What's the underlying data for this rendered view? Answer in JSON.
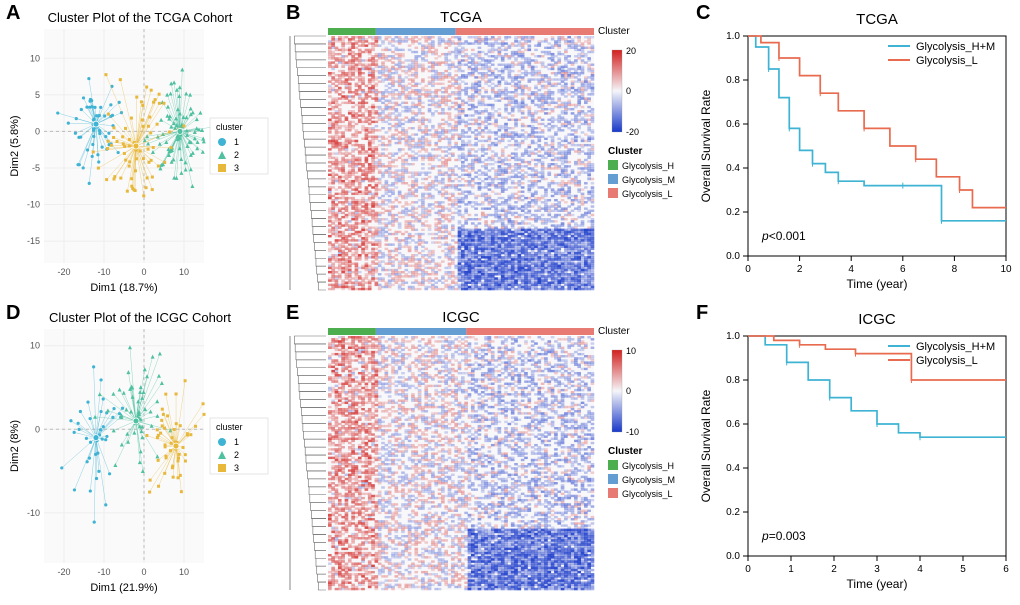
{
  "panels": {
    "A": {
      "label": "A",
      "title": "Cluster Plot of the TCGA Cohort",
      "xlabel": "Dim1 (18.7%)",
      "ylabel": "Dim2 (5.8%)",
      "xlim": [
        -25,
        15
      ],
      "ylim": [
        -18,
        14
      ],
      "xticks": [
        -20,
        -10,
        0,
        10
      ],
      "yticks": [
        -15,
        -10,
        -5,
        0,
        5,
        10
      ],
      "legend_title": "cluster",
      "clusters": [
        {
          "id": "1",
          "color": "#3eb3d4",
          "marker": "circle",
          "centroid": [
            -12,
            1
          ],
          "n": 55,
          "spread": 7
        },
        {
          "id": "2",
          "color": "#4fc0a0",
          "marker": "triangle",
          "centroid": [
            9,
            0
          ],
          "n": 85,
          "spread": 7
        },
        {
          "id": "3",
          "color": "#e8b83c",
          "marker": "square",
          "centroid": [
            -2,
            -2
          ],
          "n": 70,
          "spread": 9
        }
      ]
    },
    "B": {
      "label": "B",
      "title": "TCGA",
      "cluster_bar_label": "Cluster",
      "cluster_colors": {
        "H": "#4cae4f",
        "M": "#649dd1",
        "L": "#e77a72"
      },
      "cluster_widths": {
        "H": 0.18,
        "M": 0.3,
        "L": 0.52
      },
      "colorbar": {
        "min": -20,
        "mid": 0,
        "max": 20,
        "low_color": "#1838c9",
        "mid_color": "#f5f5f9",
        "high_color": "#d2201e"
      },
      "legend_title": "Cluster",
      "legend_items": [
        {
          "label": "Glycolysis_H",
          "color": "#4cae4f"
        },
        {
          "label": "Glycolysis_M",
          "color": "#649dd1"
        },
        {
          "label": "Glycolysis_L",
          "color": "#e77a72"
        }
      ],
      "dendro_color": "#6a6a6a"
    },
    "C": {
      "label": "C",
      "title": "TCGA",
      "xlabel": "Time (year)",
      "ylabel": "Overall Survival Rate",
      "xlim": [
        0,
        10
      ],
      "ylim": [
        0,
        1.0
      ],
      "xticks": [
        0,
        2,
        4,
        6,
        8,
        10
      ],
      "yticks": [
        0.0,
        0.2,
        0.4,
        0.6,
        0.8,
        1.0
      ],
      "pvalue_text_prefix": "p",
      "pvalue_text": "<0.001",
      "legend": [
        {
          "label": "Glycolysis_H+M",
          "color": "#3eb3d4"
        },
        {
          "label": "Glycolysis_L",
          "color": "#e86b4f"
        }
      ],
      "curves": {
        "HM": {
          "color": "#3eb3d4",
          "pts": [
            [
              0,
              1.0
            ],
            [
              0.3,
              0.95
            ],
            [
              0.8,
              0.85
            ],
            [
              1.2,
              0.72
            ],
            [
              1.6,
              0.58
            ],
            [
              2.0,
              0.48
            ],
            [
              2.5,
              0.42
            ],
            [
              3.0,
              0.38
            ],
            [
              3.5,
              0.34
            ],
            [
              4.5,
              0.32
            ],
            [
              6.0,
              0.32
            ],
            [
              7.0,
              0.32
            ],
            [
              7.5,
              0.16
            ],
            [
              10,
              0.16
            ]
          ]
        },
        "L": {
          "color": "#e86b4f",
          "pts": [
            [
              0,
              1.0
            ],
            [
              0.5,
              0.97
            ],
            [
              1.2,
              0.9
            ],
            [
              2.0,
              0.82
            ],
            [
              2.8,
              0.74
            ],
            [
              3.5,
              0.66
            ],
            [
              4.5,
              0.58
            ],
            [
              5.5,
              0.5
            ],
            [
              6.5,
              0.44
            ],
            [
              7.3,
              0.36
            ],
            [
              8.2,
              0.3
            ],
            [
              8.7,
              0.22
            ],
            [
              10,
              0.22
            ]
          ]
        }
      }
    },
    "D": {
      "label": "D",
      "title": "Cluster Plot of the ICGC Cohort",
      "xlabel": "Dim1 (21.9%)",
      "ylabel": "Dim2 (8%)",
      "xlim": [
        -25,
        15
      ],
      "ylim": [
        -16,
        12
      ],
      "xticks": [
        -20,
        -10,
        0,
        10
      ],
      "yticks": [
        -10,
        0,
        10
      ],
      "legend_title": "cluster",
      "clusters": [
        {
          "id": "1",
          "color": "#3eb3d4",
          "marker": "circle",
          "centroid": [
            -12,
            -1
          ],
          "n": 40,
          "spread": 7
        },
        {
          "id": "2",
          "color": "#4fc0a0",
          "marker": "triangle",
          "centroid": [
            -2,
            1
          ],
          "n": 55,
          "spread": 8
        },
        {
          "id": "3",
          "color": "#e8b83c",
          "marker": "square",
          "centroid": [
            8,
            -2
          ],
          "n": 50,
          "spread": 7
        }
      ]
    },
    "E": {
      "label": "E",
      "title": "ICGC",
      "cluster_bar_label": "Cluster",
      "cluster_colors": {
        "H": "#4cae4f",
        "M": "#649dd1",
        "L": "#e77a72"
      },
      "cluster_widths": {
        "H": 0.18,
        "M": 0.34,
        "L": 0.48
      },
      "colorbar": {
        "min": -10,
        "mid": 0,
        "max": 10,
        "low_color": "#1838c9",
        "mid_color": "#f5f5f9",
        "high_color": "#d2201e"
      },
      "legend_title": "Cluster",
      "legend_items": [
        {
          "label": "Glycolysis_H",
          "color": "#4cae4f"
        },
        {
          "label": "Glycolysis_M",
          "color": "#649dd1"
        },
        {
          "label": "Glycolysis_L",
          "color": "#e77a72"
        }
      ],
      "dendro_color": "#6a6a6a"
    },
    "F": {
      "label": "F",
      "title": "ICGC",
      "xlabel": "Time (year)",
      "ylabel": "Overall Survival Rate",
      "xlim": [
        0,
        6
      ],
      "ylim": [
        0,
        1.0
      ],
      "xticks": [
        0,
        1,
        2,
        3,
        4,
        5,
        6
      ],
      "yticks": [
        0.0,
        0.2,
        0.4,
        0.6,
        0.8,
        1.0
      ],
      "pvalue_text_prefix": "p",
      "pvalue_text": "=0.003",
      "legend": [
        {
          "label": "Glycolysis_H+M",
          "color": "#3eb3d4"
        },
        {
          "label": "Glycolysis_L",
          "color": "#e86b4f"
        }
      ],
      "curves": {
        "HM": {
          "color": "#3eb3d4",
          "pts": [
            [
              0,
              1.0
            ],
            [
              0.4,
              0.96
            ],
            [
              0.9,
              0.88
            ],
            [
              1.4,
              0.8
            ],
            [
              1.9,
              0.72
            ],
            [
              2.4,
              0.66
            ],
            [
              3.0,
              0.6
            ],
            [
              3.5,
              0.56
            ],
            [
              4.0,
              0.54
            ],
            [
              5.0,
              0.54
            ],
            [
              6.0,
              0.54
            ]
          ]
        },
        "L": {
          "color": "#e86b4f",
          "pts": [
            [
              0,
              1.0
            ],
            [
              0.6,
              0.98
            ],
            [
              1.2,
              0.96
            ],
            [
              1.8,
              0.94
            ],
            [
              2.5,
              0.92
            ],
            [
              3.5,
              0.92
            ],
            [
              3.8,
              0.8
            ],
            [
              6.0,
              0.8
            ]
          ]
        }
      }
    }
  }
}
